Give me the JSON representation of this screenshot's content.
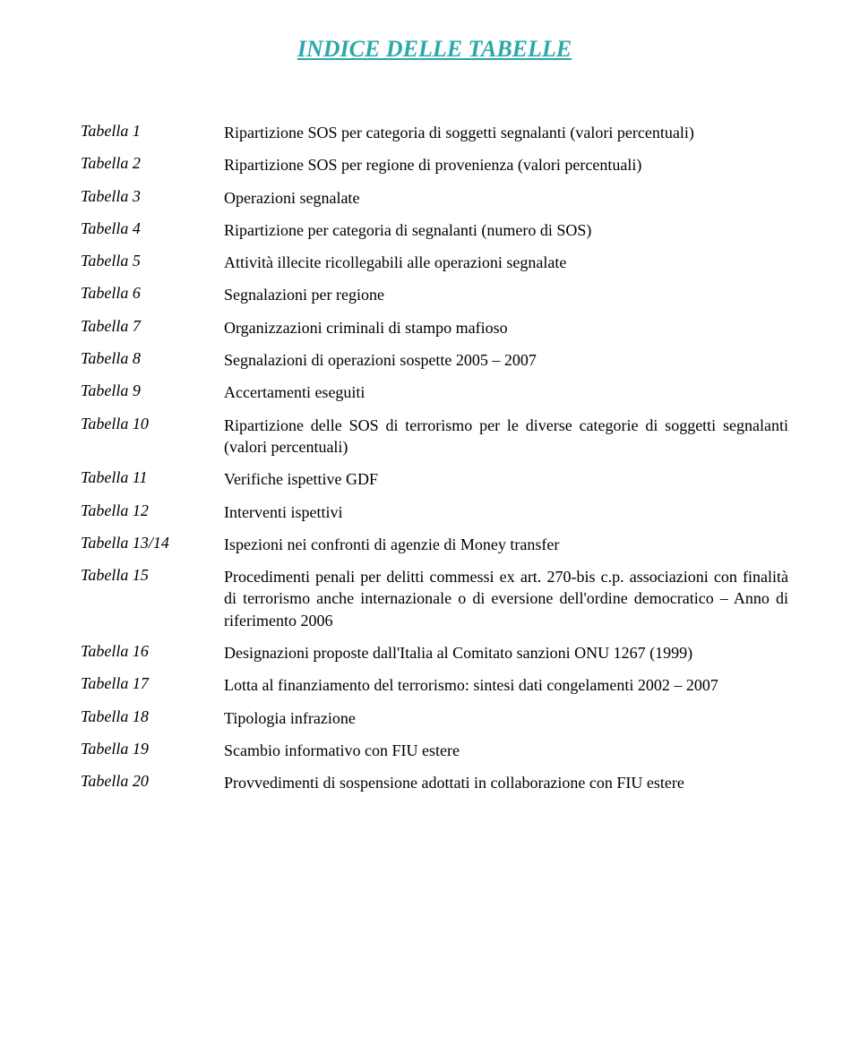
{
  "title": "INDICE DELLE TABELLE",
  "title_color": "#2ba8a8",
  "text_color": "#000000",
  "background": "#ffffff",
  "font_family": "Georgia, serif",
  "title_fontsize": 26,
  "body_fontsize": 18,
  "rows": [
    {
      "label": "Tabella 1",
      "desc": "Ripartizione SOS per categoria di soggetti segnalanti (valori percentuali)"
    },
    {
      "label": "Tabella 2",
      "desc": "Ripartizione SOS per regione di provenienza (valori percentuali)"
    },
    {
      "label": "Tabella 3",
      "desc": "Operazioni segnalate"
    },
    {
      "label": "Tabella 4",
      "desc": "Ripartizione per categoria di segnalanti (numero di SOS)"
    },
    {
      "label": "Tabella 5",
      "desc": "Attività illecite ricollegabili alle operazioni segnalate"
    },
    {
      "label": "Tabella 6",
      "desc": "Segnalazioni per regione"
    },
    {
      "label": "Tabella 7",
      "desc": "Organizzazioni criminali di stampo mafioso"
    },
    {
      "label": "Tabella 8",
      "desc": "Segnalazioni di operazioni sospette 2005 – 2007"
    },
    {
      "label": "Tabella 9",
      "desc": "Accertamenti eseguiti"
    },
    {
      "label": "Tabella 10",
      "desc": "Ripartizione delle SOS di terrorismo per le diverse categorie di soggetti segnalanti (valori percentuali)"
    },
    {
      "label": "Tabella 11",
      "desc": "Verifiche ispettive GDF"
    },
    {
      "label": "Tabella 12",
      "desc": "Interventi ispettivi"
    },
    {
      "label": "Tabella 13/14",
      "desc": "Ispezioni nei confronti di agenzie di Money transfer"
    },
    {
      "label": "Tabella 15",
      "desc": "Procedimenti penali per delitti commessi ex art. 270-bis c.p. associazioni con finalità di terrorismo anche internazionale o di eversione dell'ordine democratico – Anno di riferimento 2006"
    },
    {
      "label": "Tabella 16",
      "desc": "Designazioni proposte dall'Italia al Comitato sanzioni ONU 1267 (1999)"
    },
    {
      "label": "Tabella 17",
      "desc": "Lotta al finanziamento del terrorismo: sintesi dati congelamenti 2002 – 2007"
    },
    {
      "label": "Tabella 18",
      "desc": "Tipologia infrazione"
    },
    {
      "label": "Tabella 19",
      "desc": "Scambio informativo con FIU  estere"
    },
    {
      "label": "Tabella 20",
      "desc": "Provvedimenti di sospensione adottati in collaborazione con FIU estere"
    }
  ]
}
